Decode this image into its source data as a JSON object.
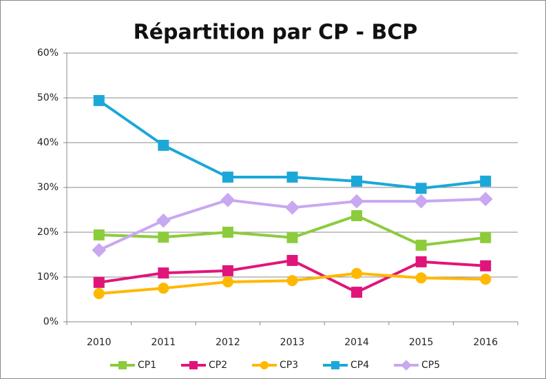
{
  "chart_data": {
    "type": "line",
    "title": "Répartition par CP - BCP",
    "categories": [
      "2010",
      "2011",
      "2012",
      "2013",
      "2014",
      "2015",
      "2016"
    ],
    "series": [
      {
        "name": "CP1",
        "color": "#8ccc3c",
        "marker": "square",
        "values": [
          19.4,
          18.9,
          20,
          18.8,
          23.7,
          17.1,
          18.8
        ]
      },
      {
        "name": "CP2",
        "color": "#e0157a",
        "marker": "square",
        "values": [
          8.8,
          10.9,
          11.4,
          13.7,
          6.6,
          13.4,
          12.5
        ]
      },
      {
        "name": "CP3",
        "color": "#ffb800",
        "marker": "circle",
        "values": [
          6.3,
          7.5,
          8.9,
          9.2,
          10.8,
          9.8,
          9.5
        ]
      },
      {
        "name": "CP4",
        "color": "#1ba8d8",
        "marker": "square",
        "values": [
          49.4,
          39.4,
          32.3,
          32.3,
          31.4,
          29.8,
          31.4
        ]
      },
      {
        "name": "CP5",
        "color": "#c8a8f0",
        "marker": "diamond",
        "values": [
          16,
          22.6,
          27.2,
          25.5,
          26.9,
          26.9,
          27.4
        ]
      }
    ],
    "ylim": [
      0,
      60
    ],
    "yticks": [
      {
        "value": 0,
        "label": "0%"
      },
      {
        "value": 10,
        "label": "10%"
      },
      {
        "value": 20,
        "label": "20%"
      },
      {
        "value": 30,
        "label": "30%"
      },
      {
        "value": 40,
        "label": "40%"
      },
      {
        "value": 50,
        "label": "50%"
      },
      {
        "value": 60,
        "label": "60%"
      }
    ],
    "grid": true,
    "legend": "bottom"
  }
}
